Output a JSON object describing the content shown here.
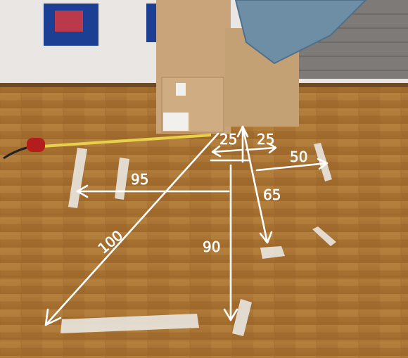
{
  "annotations": [
    {
      "label": "25"
    },
    {
      "label": "25"
    },
    {
      "label": "50"
    },
    {
      "label": "95"
    },
    {
      "label": "65"
    },
    {
      "label": "100"
    },
    {
      "label": "90"
    }
  ]
}
